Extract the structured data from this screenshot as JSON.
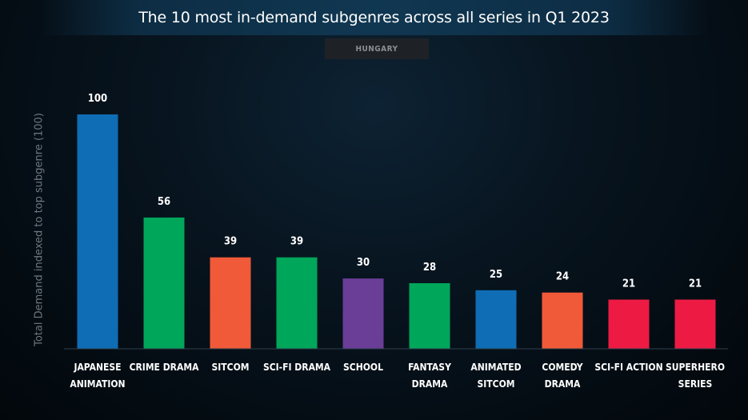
{
  "chart_data": {
    "type": "bar",
    "title": "The 10 most in-demand subgenres across all series in Q1 2023",
    "subtitle": "HUNGARY",
    "xlabel": "",
    "ylabel": "Total Demand indexed to top subgenre (100)",
    "ylim": [
      0,
      100
    ],
    "grid": false,
    "categories": [
      [
        "JAPANESE",
        "ANIMATION"
      ],
      [
        "CRIME DRAMA"
      ],
      [
        "SITCOM"
      ],
      [
        "SCI-FI DRAMA"
      ],
      [
        "SCHOOL"
      ],
      [
        "FANTASY",
        "DRAMA"
      ],
      [
        "ANIMATED",
        "SITCOM"
      ],
      [
        "COMEDY",
        "DRAMA"
      ],
      [
        "SCI-FI ACTION"
      ],
      [
        "SUPERHERO",
        "SERIES"
      ]
    ],
    "values": [
      100,
      56,
      39,
      39,
      30,
      28,
      25,
      24,
      21,
      21
    ],
    "colors": [
      "#0e6db4",
      "#00a65a",
      "#f05a38",
      "#00a65a",
      "#6a3d96",
      "#00a65a",
      "#0e6db4",
      "#f05a38",
      "#ed1b44",
      "#ed1b44"
    ]
  }
}
